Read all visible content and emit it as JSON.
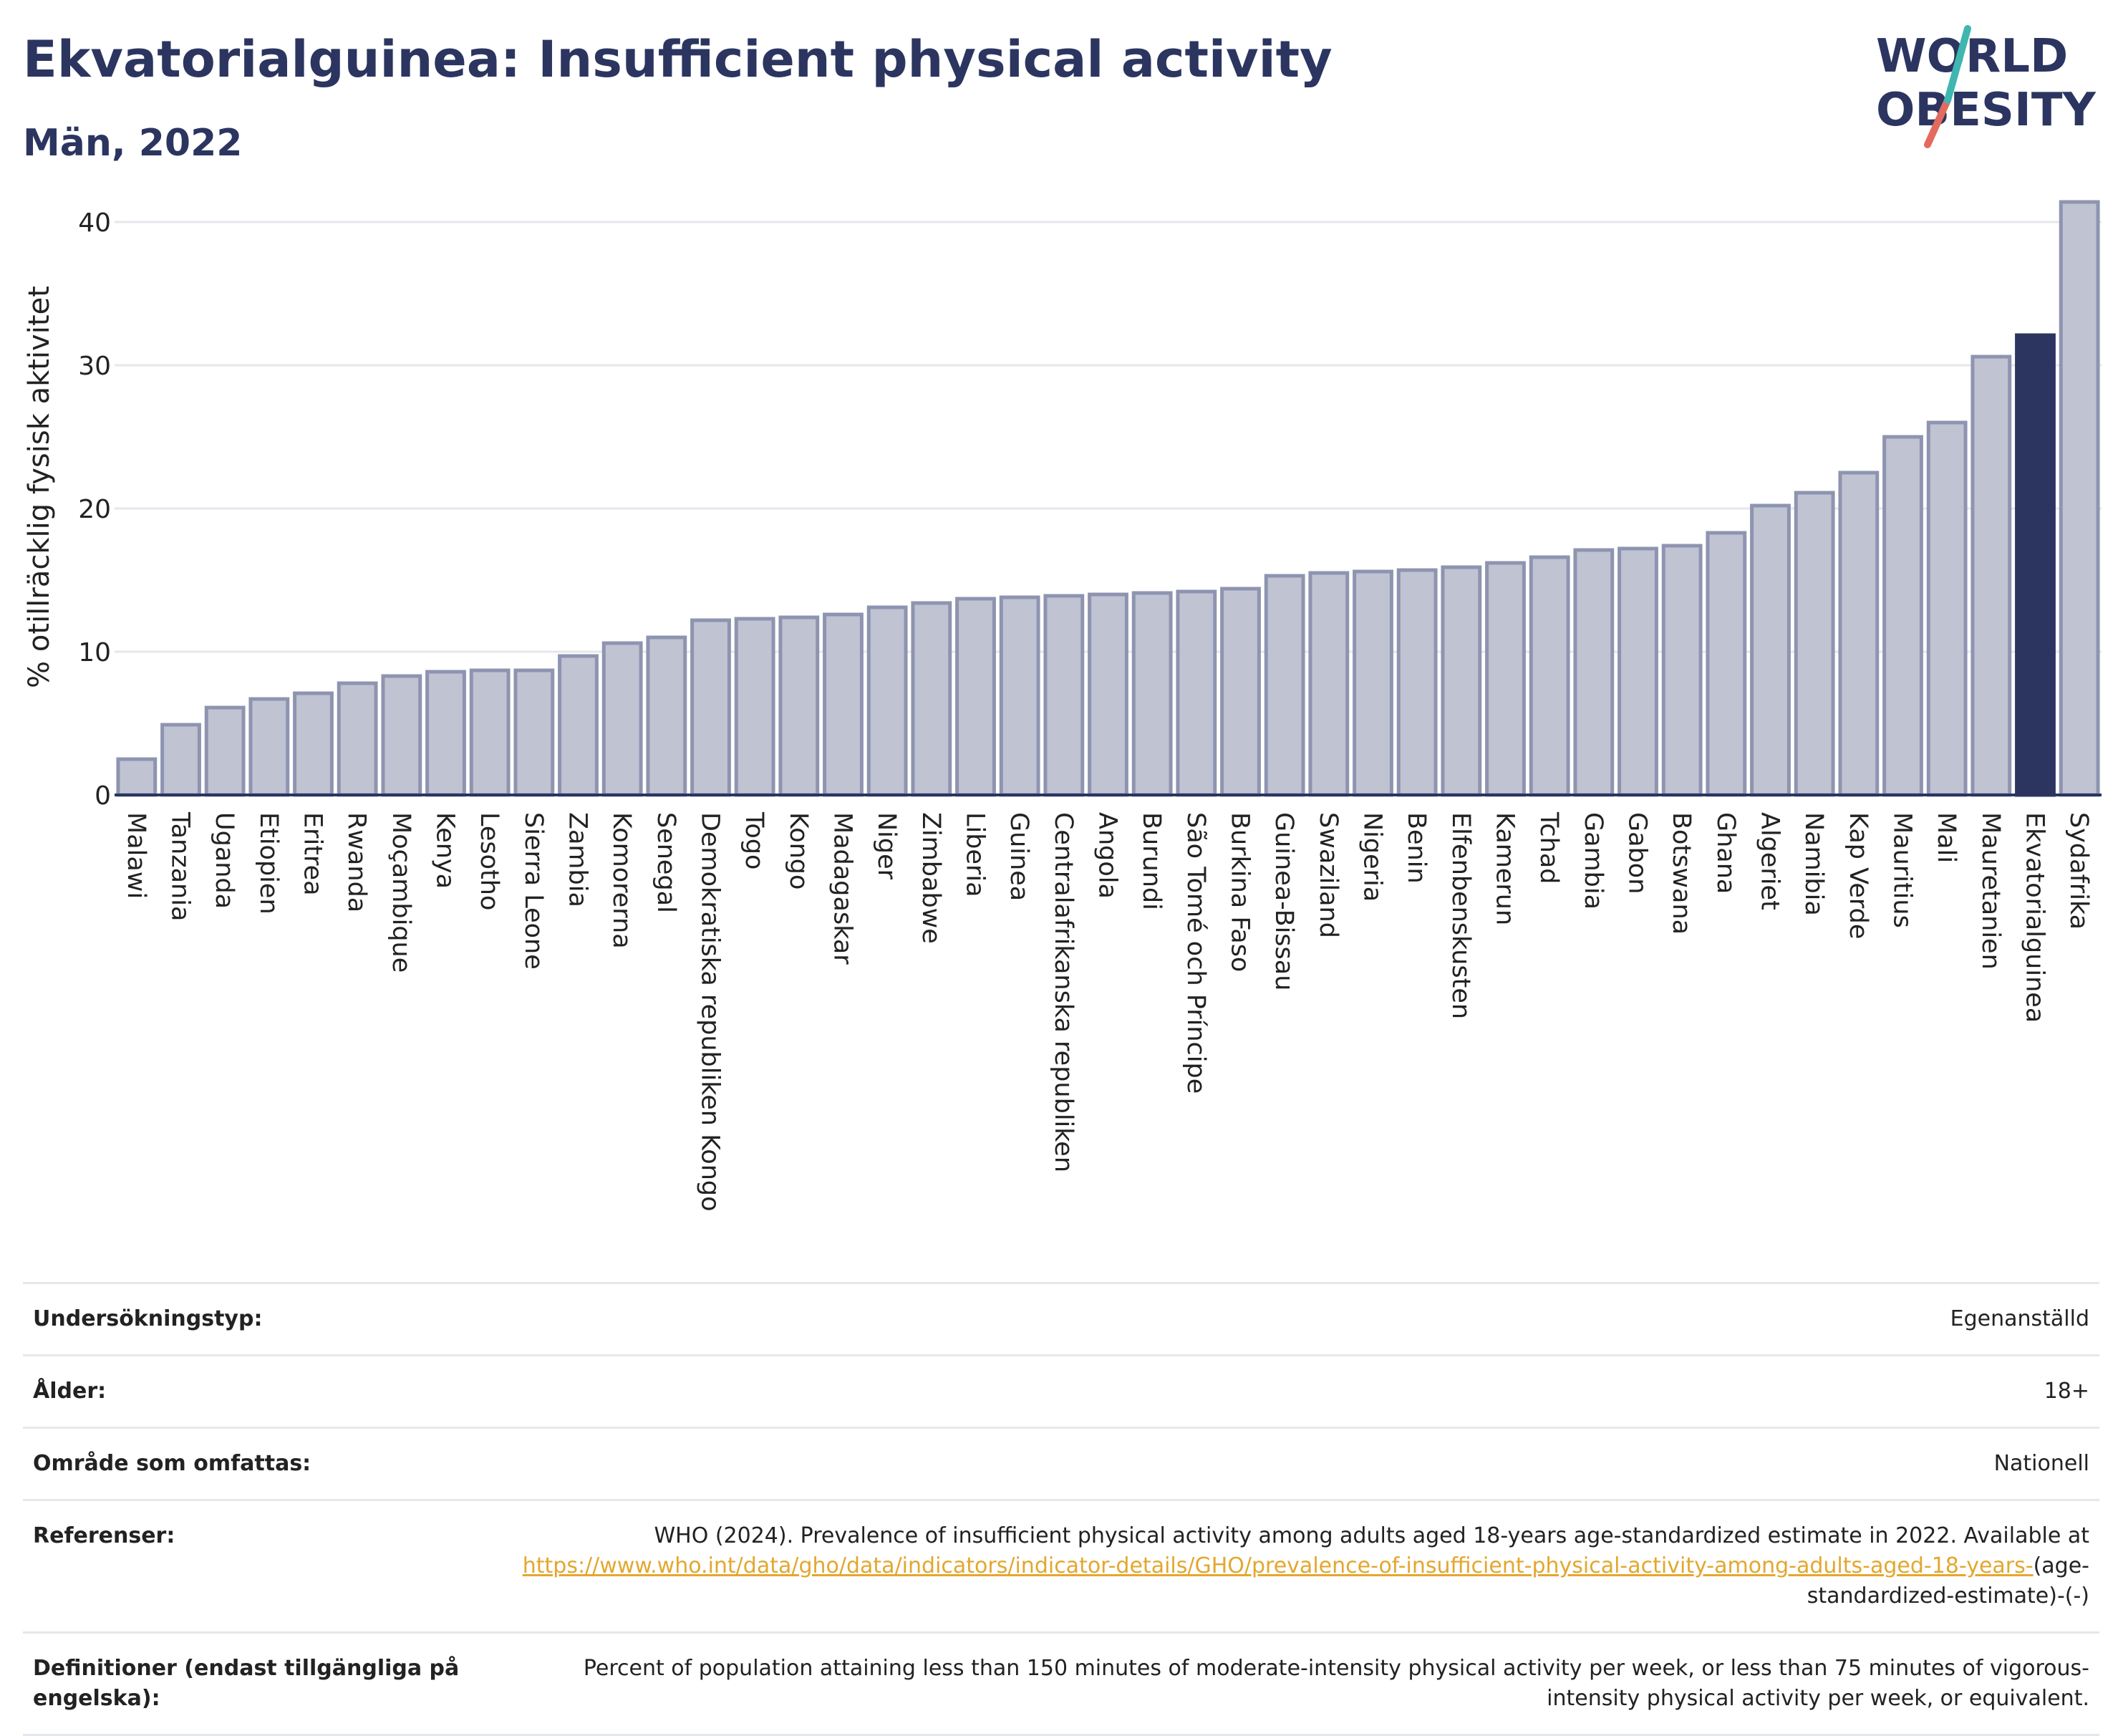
{
  "header": {
    "title": "Ekvatorialguinea: Insufficient physical activity",
    "subtitle": "Män, 2022",
    "logo_text": "WORLD OBESITY"
  },
  "colors": {
    "bar": "#bfc3d2",
    "bar_border": "#8e94b0",
    "highlight": "#2b3560",
    "accent_teal": "#3fb6b0",
    "accent_red": "#e36b5d",
    "link": "#e3a72f"
  },
  "chart_data": {
    "type": "bar",
    "title": "Ekvatorialguinea: Insufficient physical activity",
    "ylabel": "% otillräcklig fysisk aktivitet",
    "xlabel": "",
    "ylim": [
      0,
      43
    ],
    "yticks": [
      0,
      10,
      20,
      30,
      40
    ],
    "grid": true,
    "highlight": "Ekvatorialguinea",
    "categories": [
      "Malawi",
      "Tanzania",
      "Uganda",
      "Etiopien",
      "Eritrea",
      "Rwanda",
      "Moçambique",
      "Kenya",
      "Lesotho",
      "Sierra Leone",
      "Zambia",
      "Komorerna",
      "Senegal",
      "Demokratiska republiken Kongo",
      "Togo",
      "Kongo",
      "Madagaskar",
      "Niger",
      "Zimbabwe",
      "Liberia",
      "Guinea",
      "Centralafrikanska republiken",
      "Angola",
      "Burundi",
      "São Tomé och Príncipe",
      "Burkina Faso",
      "Guinea-Bissau",
      "Swaziland",
      "Nigeria",
      "Benin",
      "Elfenbenskusten",
      "Kamerun",
      "Tchad",
      "Gambia",
      "Gabon",
      "Botswana",
      "Ghana",
      "Algeriet",
      "Namibia",
      "Kap Verde",
      "Mauritius",
      "Mali",
      "Mauretanien",
      "Ekvatorialguinea",
      "Sydafrika"
    ],
    "values": [
      2.5,
      4.9,
      6.1,
      6.7,
      7.1,
      7.8,
      8.3,
      8.6,
      8.7,
      8.7,
      9.7,
      10.6,
      11.0,
      12.2,
      12.3,
      12.4,
      12.6,
      13.1,
      13.4,
      13.7,
      13.8,
      13.9,
      14.0,
      14.1,
      14.2,
      14.4,
      15.3,
      15.5,
      15.6,
      15.7,
      15.9,
      16.2,
      16.6,
      17.1,
      17.2,
      17.4,
      18.3,
      20.2,
      21.1,
      22.5,
      25.0,
      26.0,
      30.6,
      32.1,
      41.4
    ]
  },
  "info": {
    "survey_type_label": "Undersökningstyp:",
    "survey_type_value": "Egenanställd",
    "age_label": "Ålder:",
    "age_value": "18+",
    "coverage_label": "Område som omfattas:",
    "coverage_value": "Nationell",
    "references_label": "Referenser:",
    "references_text": "WHO (2024). Prevalence of insufficient physical activity among adults aged 18-years age-standardized estimate in 2022. Available at",
    "references_link": "https://www.who.int/data/gho/data/indicators/indicator-details/GHO/prevalence-of-insufficient-physical-activity-among-adults-aged-18-years-",
    "references_suffix": "(age-standardized-estimate)-(-)",
    "definitions_label": "Definitioner (endast tillgängliga på engelska):",
    "definitions_value": "Percent of population attaining less than 150 minutes of moderate-intensity physical activity per week, or less than 75 minutes of vigorous-intensity physical activity per week, or equivalent."
  }
}
